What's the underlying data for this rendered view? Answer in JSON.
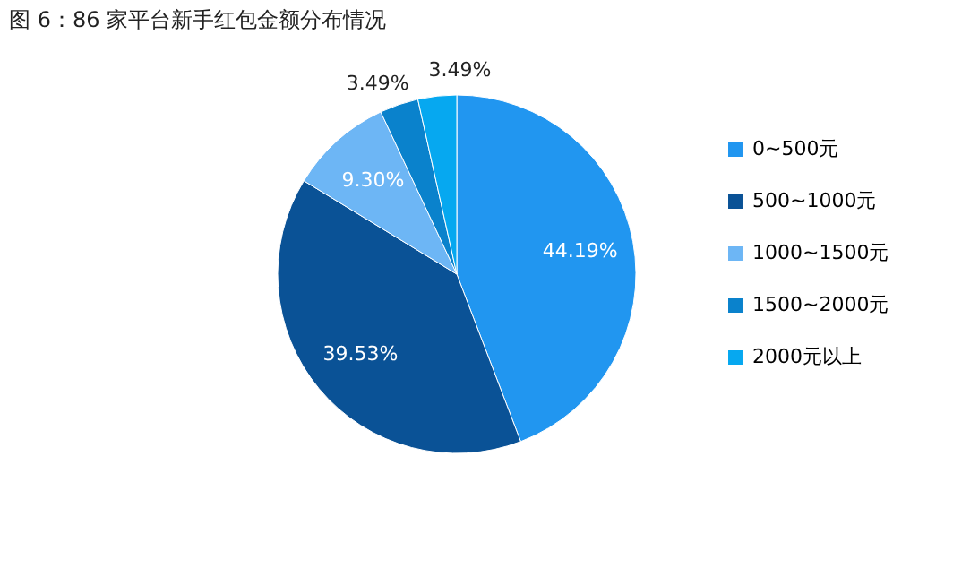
{
  "chart_data": {
    "type": "pie",
    "title": "图 6：86 家平台新手红包金额分布情况",
    "categories": [
      "0~500元",
      "500~1000元",
      "1000~1500元",
      "1500~2000元",
      "2000元以上"
    ],
    "values": [
      44.19,
      39.53,
      9.3,
      3.49,
      3.49
    ],
    "colors": [
      "#2196f0",
      "#0a5296",
      "#6db6f5",
      "#0a82cc",
      "#06a8f0"
    ],
    "value_labels": [
      "44.19%",
      "39.53%",
      "9.30%",
      "3.49%",
      "3.49%"
    ],
    "legend": "right"
  }
}
